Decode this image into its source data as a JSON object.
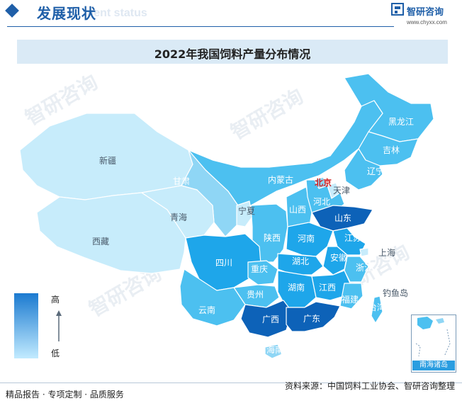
{
  "header": {
    "section_title": "发展现状",
    "section_title_en": "ment status",
    "brand_name": "智研咨询",
    "brand_url": "www.chyxx.com"
  },
  "title": "2022年我国饲料产量分布情况",
  "watermark_text": "智研咨询",
  "legend": {
    "high": "高",
    "low": "低"
  },
  "map": {
    "capital_label": "北京",
    "provinces": [
      {
        "name": "黑龙江",
        "level": 3
      },
      {
        "name": "吉林",
        "level": 3
      },
      {
        "name": "辽宁",
        "level": 3
      },
      {
        "name": "内蒙古",
        "level": 3
      },
      {
        "name": "新疆",
        "level": 1
      },
      {
        "name": "西藏",
        "level": 1
      },
      {
        "name": "甘肃",
        "level": 2
      },
      {
        "name": "青海",
        "level": 1
      },
      {
        "name": "宁夏",
        "level": 1
      },
      {
        "name": "陕西",
        "level": 3
      },
      {
        "name": "山西",
        "level": 3
      },
      {
        "name": "河北",
        "level": 3
      },
      {
        "name": "北京",
        "level": 2
      },
      {
        "name": "天津",
        "level": 1
      },
      {
        "name": "山东",
        "level": 5
      },
      {
        "name": "河南",
        "level": 4
      },
      {
        "name": "江苏",
        "level": 4
      },
      {
        "name": "安徽",
        "level": 4
      },
      {
        "name": "上海",
        "level": 1
      },
      {
        "name": "浙江",
        "level": 3
      },
      {
        "name": "湖北",
        "level": 4
      },
      {
        "name": "四川",
        "level": 4
      },
      {
        "name": "重庆",
        "level": 3
      },
      {
        "name": "湖南",
        "level": 4
      },
      {
        "name": "江西",
        "level": 4
      },
      {
        "name": "福建",
        "level": 3
      },
      {
        "name": "贵州",
        "level": 3
      },
      {
        "name": "云南",
        "level": 3
      },
      {
        "name": "广西",
        "level": 5
      },
      {
        "name": "广东",
        "level": 5
      },
      {
        "name": "海南",
        "level": 2
      },
      {
        "name": "台湾",
        "level": 3
      }
    ],
    "island_label": "钓鱼岛",
    "inset_label": "南海诸岛"
  },
  "colors": {
    "level_1": "#c7ecfb",
    "level_2": "#8fd6f5",
    "level_3": "#4cc0f0",
    "level_4": "#1ea6ea",
    "level_5": "#0d62b8",
    "brand_blue": "#1f5fa8"
  },
  "footer": {
    "left": "精品报告 · 专项定制 · 品质服务",
    "source": "资料来源：中国饲料工业协会、智研咨询整理"
  }
}
